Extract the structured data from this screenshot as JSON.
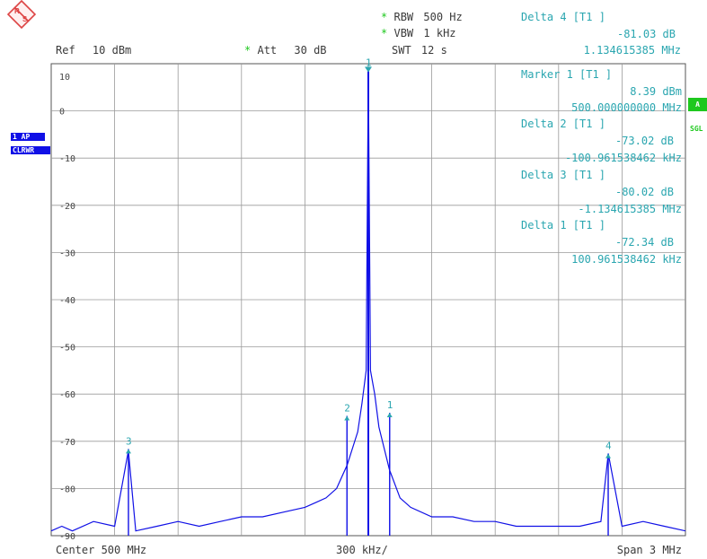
{
  "header": {
    "rbw_label": "RBW",
    "rbw_value": "500 Hz",
    "vbw_label": "VBW",
    "vbw_value": "1 kHz",
    "ref_label": "Ref",
    "ref_value": "10 dBm",
    "att_label": "Att",
    "att_value": "30 dB",
    "swt_label": "SWT",
    "swt_value": "12 s"
  },
  "readout": [
    {
      "title": "Delta 4 [T1 ]",
      "level": "-81.03 dB",
      "freq": "1.134615385 MHz"
    },
    {
      "title": "Marker 1 [T1 ]",
      "level": "8.39 dBm",
      "freq": "500.000000000 MHz"
    },
    {
      "title": "Delta 2 [T1 ]",
      "level": "-73.02 dB",
      "freq": "-100.961538462 kHz"
    },
    {
      "title": "Delta 3 [T1 ]",
      "level": "-80.02 dB",
      "freq": "-1.134615385 MHz"
    },
    {
      "title": "Delta 1 [T1 ]",
      "level": "-72.34 dB",
      "freq": "100.961538462 kHz"
    }
  ],
  "side": {
    "trace_tag": "1 AP",
    "mode_tag": "CLRWR",
    "right_tag": "A",
    "right_label": "SGL"
  },
  "footer": {
    "center": "Center 500 MHz",
    "div": "300 kHz/",
    "span": "Span 3 MHz"
  },
  "colors": {
    "trace": "#1010e6",
    "marker": "#2aa6b0",
    "grid": "#9a9a9a",
    "frame": "#555555"
  },
  "chart_data": {
    "type": "line",
    "title": "",
    "xlabel": "",
    "ylabel": "",
    "x_unit": "MHz",
    "xlim": [
      498.5,
      501.5
    ],
    "ylim": [
      -90,
      10
    ],
    "y_ticks": [
      10,
      0,
      -10,
      -20,
      -30,
      -40,
      -50,
      -60,
      -70,
      -80,
      -90
    ],
    "y_tick_labels": [
      "10",
      "0",
      "-10",
      "-20",
      "-30",
      "-40",
      "-50",
      "-60",
      "-70",
      "-80",
      "-90"
    ],
    "grid": true,
    "series": [
      {
        "values_x": [
          498.5,
          498.55,
          498.6,
          498.7,
          498.8,
          498.865,
          498.9,
          499.0,
          499.1,
          499.2,
          499.3,
          499.4,
          499.5,
          499.6,
          499.7,
          499.75,
          499.8,
          499.85,
          499.9,
          499.95,
          499.97,
          499.99,
          500.0,
          500.01,
          500.03,
          500.05,
          500.1,
          500.15,
          500.2,
          500.3,
          500.4,
          500.5,
          500.6,
          500.7,
          500.8,
          500.9,
          501.0,
          501.1,
          501.135,
          501.2,
          501.3,
          501.4,
          501.5
        ],
        "values_y": [
          -89,
          -88,
          -89,
          -87,
          -88,
          -72,
          -89,
          -88,
          -87,
          -88,
          -87,
          -86,
          -86,
          -85,
          -84,
          -83,
          -82,
          -80,
          -75,
          -68,
          -62,
          -55,
          8.39,
          -55,
          -60,
          -67,
          -76,
          -82,
          -84,
          -86,
          -86,
          -87,
          -87,
          -88,
          -88,
          -88,
          -88,
          -87,
          -72.6,
          -88,
          -87,
          -88,
          -89
        ]
      }
    ],
    "markers": [
      {
        "label": "1",
        "x": 500.0,
        "y": 8.39
      },
      {
        "label": "1",
        "x": 500.100961538,
        "y": -63.95
      },
      {
        "label": "2",
        "x": 499.899038462,
        "y": -64.63
      },
      {
        "label": "3",
        "x": 498.865384615,
        "y": -71.63
      },
      {
        "label": "4",
        "x": 501.134615385,
        "y": -72.64
      }
    ]
  }
}
